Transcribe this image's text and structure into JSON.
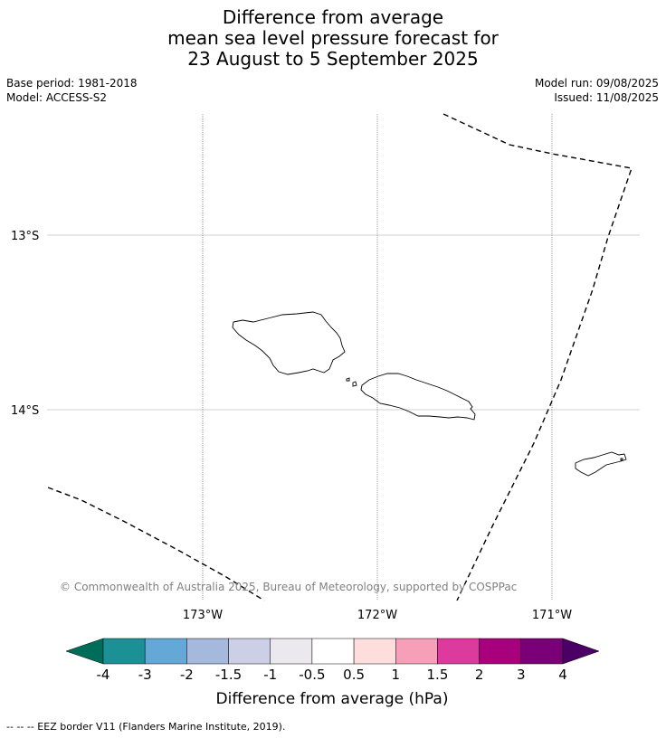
{
  "title": {
    "line1": "Difference from average",
    "line2": "mean sea level pressure forecast for",
    "line3": "23 August to 5 September 2025"
  },
  "meta_left": {
    "base_period": "Base period: 1981-2018",
    "model": "Model: ACCESS-S2"
  },
  "meta_right": {
    "model_run": "Model run: 09/08/2025",
    "issued": "Issued: 11/08/2025"
  },
  "map": {
    "lat_labels": [
      "13°S",
      "14°S"
    ],
    "lon_labels": [
      "173°W",
      "172°W",
      "171°W"
    ],
    "copyright": "© Commonwealth of Australia 2025, Bureau of Meteorology, supported by COSPPac",
    "colors": {
      "gridline": "#c0c0c0",
      "coast": "#000000",
      "eez": "#000000",
      "copyright": "#808080"
    }
  },
  "colorbar": {
    "label": "Difference from average (hPa)",
    "ticks": [
      "-4",
      "-3",
      "-2",
      "-1.5",
      "-1",
      "-0.5",
      "0.5",
      "1",
      "1.5",
      "2",
      "3",
      "4"
    ],
    "colors": [
      "#006d5a",
      "#1b9196",
      "#63a8d6",
      "#a5b9dc",
      "#cdcfe7",
      "#ebe9ee",
      "#ffffff",
      "#fedddd",
      "#f79fb8",
      "#dd3a9e",
      "#a8007d",
      "#7a0078",
      "#4b0066"
    ]
  },
  "footer": "--  --  -- EEZ border V11 (Flanders Marine Institute, 2019)."
}
